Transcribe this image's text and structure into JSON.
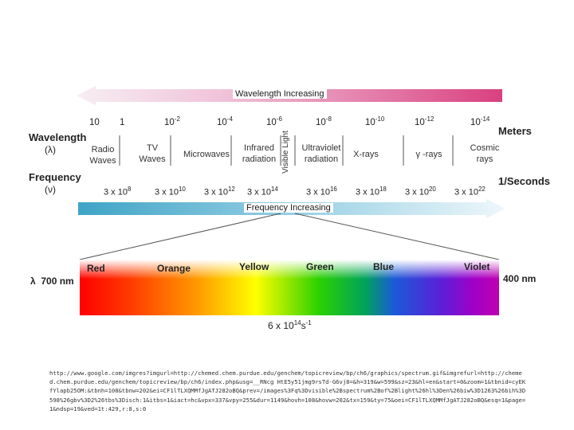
{
  "wavelength_arrow": {
    "label": "Wavelength Increasing"
  },
  "frequency_arrow": {
    "label": "Frequency Increasing"
  },
  "wavelength": {
    "title": "Wavelength",
    "symbol": "(λ)",
    "unit": "Meters",
    "ticks": [
      {
        "base": "10",
        "exp": ""
      },
      {
        "base": "1",
        "exp": ""
      },
      {
        "base": "10",
        "exp": "-2"
      },
      {
        "base": "10",
        "exp": "-4"
      },
      {
        "base": "10",
        "exp": "-6"
      },
      {
        "base": "10",
        "exp": "-8"
      },
      {
        "base": "10",
        "exp": "-10"
      },
      {
        "base": "10",
        "exp": "-12"
      },
      {
        "base": "10",
        "exp": "-14"
      }
    ]
  },
  "bands": [
    "Radio\nWaves",
    "TV\nWaves",
    "Microwaves",
    "Infrared\nradiation",
    "Visible Light",
    "Ultraviolet\nradiation",
    "X-rays",
    "γ -rays",
    "Cosmic\nrays"
  ],
  "frequency": {
    "title": "Frequency",
    "symbol": "(ν)",
    "unit": "1/Seconds",
    "ticks": [
      {
        "base": "3 x 10",
        "exp": "8"
      },
      {
        "base": "3 x 10",
        "exp": "10"
      },
      {
        "base": "3 x 10",
        "exp": "12"
      },
      {
        "base": "3 x 10",
        "exp": "14"
      },
      {
        "base": "3 x 10",
        "exp": "16"
      },
      {
        "base": "3 x 10",
        "exp": "18"
      },
      {
        "base": "3 x 10",
        "exp": "20"
      },
      {
        "base": "3 x 10",
        "exp": "22"
      }
    ]
  },
  "visible": {
    "colors": [
      "Red",
      "Orange",
      "Yellow",
      "Green",
      "Blue",
      "Violet"
    ],
    "left_label": "λ  700 nm",
    "right_label": "400 nm",
    "peak": {
      "base": "6 x 10",
      "exp": "14",
      "suffix": "s",
      "suffix_exp": "-1"
    }
  },
  "source_url": "http://www.google.com/imgres?imgurl=http://chemed.chem.purdue.edu/genchem/topicreview/bp/ch6/graphics/spectrum.gif&imgrefurl=http://chemed.chem.purdue.edu/genchem/topicreview/bp/ch6/index.php&usg=__RNcg HtE5y51jmg9rsTd-G6vj8=&h=319&w=599&sz=23&hl=en&start=0&zoom=1&tbnid=cyEKfYlapb25OM:&tbnh=108&tbnw=202&ei=CF1lTLXQMMfJgATJ282oBQ&prev=/images%3Fq%3Dvisible%2Bspectrum%2Bof%2Blight%26hl%3Den%26biw%3D1263%26bih%3D598%26gbv%3D2%26tbs%3Disch:1&itbs=1&iact=hc&vpx=337&vpy=255&dur=1149&hovh=108&hovw=202&tx=159&ty=75&oei=CF1lTLXQMMfJgATJ282oBQ&esq=1&page=1&ndsp=19&ved=1t:429,r:8,s:0"
}
